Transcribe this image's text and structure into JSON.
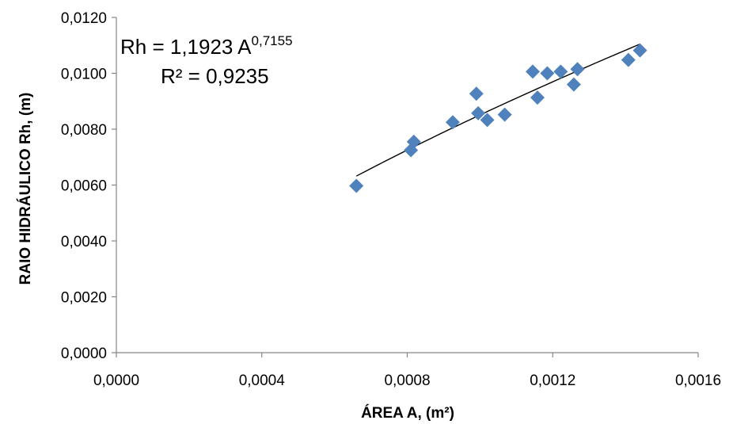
{
  "chart_data": {
    "type": "scatter",
    "title": "",
    "xlabel": "ÁREA  A, (m²)",
    "ylabel": "RAIO HIDRÁULICO  Rh, (m)",
    "xlim": [
      0,
      0.0016
    ],
    "ylim": [
      0,
      0.012
    ],
    "x_ticks": [
      0,
      0.0004,
      0.0008,
      0.0012,
      0.0016
    ],
    "x_tick_labels": [
      "0,0000",
      "0,0004",
      "0,0008",
      "0,0012",
      "0,0016"
    ],
    "y_ticks": [
      0,
      0.002,
      0.004,
      0.006,
      0.008,
      0.01,
      0.012
    ],
    "y_tick_labels": [
      "0,0000",
      "0,0020",
      "0,0040",
      "0,0060",
      "0,0080",
      "0,0100",
      "0,0120"
    ],
    "grid": false,
    "legend": false,
    "marker": "diamond",
    "marker_color": "#4F81BD",
    "points": [
      {
        "x": 0.00066,
        "y": 0.00597
      },
      {
        "x": 0.00081,
        "y": 0.00725
      },
      {
        "x": 0.000818,
        "y": 0.00755
      },
      {
        "x": 0.000925,
        "y": 0.00825
      },
      {
        "x": 0.00099,
        "y": 0.00927
      },
      {
        "x": 0.000995,
        "y": 0.00857
      },
      {
        "x": 0.00102,
        "y": 0.00833
      },
      {
        "x": 0.001068,
        "y": 0.00852
      },
      {
        "x": 0.001145,
        "y": 0.01006
      },
      {
        "x": 0.001158,
        "y": 0.00913
      },
      {
        "x": 0.001185,
        "y": 0.01
      },
      {
        "x": 0.001222,
        "y": 0.01006
      },
      {
        "x": 0.001258,
        "y": 0.0096
      },
      {
        "x": 0.001268,
        "y": 0.01015
      },
      {
        "x": 0.001408,
        "y": 0.01048
      },
      {
        "x": 0.00144,
        "y": 0.01082
      }
    ],
    "trendline": {
      "type": "power",
      "coefficient": 1.1923,
      "exponent": 0.7155,
      "x_range": [
        0.00066,
        0.00144
      ],
      "color": "#000000"
    },
    "annotation": {
      "equation_prefix": "Rh = 1,1923 A",
      "equation_exponent": "0,7155",
      "r_squared": "R² = 0,9235"
    }
  }
}
